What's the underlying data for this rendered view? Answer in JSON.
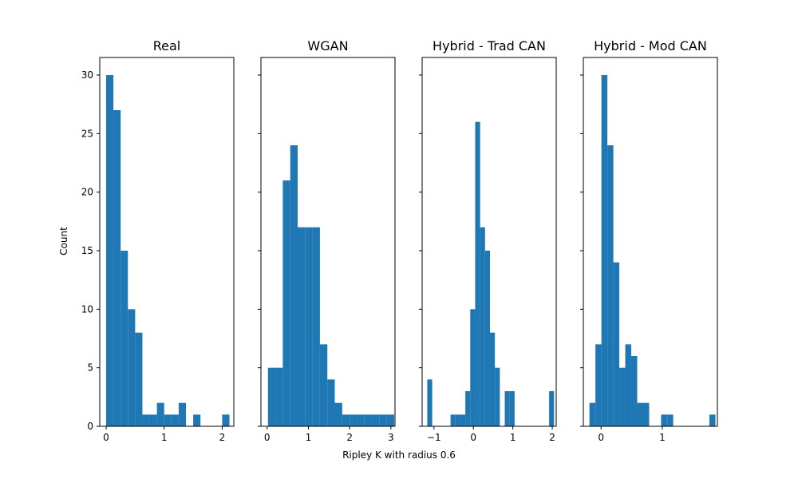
{
  "chart_data": {
    "type": "bar",
    "subtype": "histogram-panels",
    "xlabel": "Ripley K with radius 0.6",
    "ylabel": "Count",
    "shared_y": true,
    "ylim": [
      0,
      31.5
    ],
    "yticks": [
      0,
      5,
      10,
      15,
      20,
      25,
      30
    ],
    "bar_color": "#1f77b4",
    "panels": [
      {
        "title": "Real",
        "xlim": [
          -0.11,
          2.2
        ],
        "xticks": [
          0,
          1,
          2
        ],
        "bin_width": 0.125,
        "bins": [
          {
            "x": 0.0,
            "count": 30
          },
          {
            "x": 0.125,
            "count": 27
          },
          {
            "x": 0.25,
            "count": 15
          },
          {
            "x": 0.375,
            "count": 10
          },
          {
            "x": 0.5,
            "count": 8
          },
          {
            "x": 0.625,
            "count": 1
          },
          {
            "x": 0.75,
            "count": 1
          },
          {
            "x": 0.875,
            "count": 2
          },
          {
            "x": 1.0,
            "count": 1
          },
          {
            "x": 1.125,
            "count": 1
          },
          {
            "x": 1.25,
            "count": 2
          },
          {
            "x": 1.5,
            "count": 1
          },
          {
            "x": 2.0,
            "count": 1
          }
        ]
      },
      {
        "title": "WGAN",
        "xlim": [
          -0.15,
          3.1
        ],
        "xticks": [
          0,
          1,
          2,
          3
        ],
        "bin_width": 0.18,
        "bins": [
          {
            "x": 0.02,
            "count": 5
          },
          {
            "x": 0.2,
            "count": 5
          },
          {
            "x": 0.38,
            "count": 21
          },
          {
            "x": 0.56,
            "count": 24
          },
          {
            "x": 0.74,
            "count": 17
          },
          {
            "x": 0.92,
            "count": 17
          },
          {
            "x": 1.1,
            "count": 17
          },
          {
            "x": 1.28,
            "count": 7
          },
          {
            "x": 1.46,
            "count": 4
          },
          {
            "x": 1.64,
            "count": 2
          },
          {
            "x": 1.82,
            "count": 1
          },
          {
            "x": 2.0,
            "count": 1
          },
          {
            "x": 2.18,
            "count": 1
          },
          {
            "x": 2.36,
            "count": 1
          },
          {
            "x": 2.54,
            "count": 1
          },
          {
            "x": 2.72,
            "count": 1
          },
          {
            "x": 2.9,
            "count": 1
          }
        ]
      },
      {
        "title": "Hybrid - Trad CAN",
        "xlim": [
          -1.3,
          2.1
        ],
        "xticks": [
          -1,
          0,
          1,
          2
        ],
        "bin_width": 0.125,
        "bins": [
          {
            "x": -1.17,
            "count": 4
          },
          {
            "x": -0.58,
            "count": 1
          },
          {
            "x": -0.455,
            "count": 1
          },
          {
            "x": -0.33,
            "count": 1
          },
          {
            "x": -0.205,
            "count": 3
          },
          {
            "x": -0.08,
            "count": 10
          },
          {
            "x": 0.045,
            "count": 26
          },
          {
            "x": 0.17,
            "count": 17
          },
          {
            "x": 0.295,
            "count": 15
          },
          {
            "x": 0.42,
            "count": 8
          },
          {
            "x": 0.545,
            "count": 5
          },
          {
            "x": 0.795,
            "count": 3
          },
          {
            "x": 0.92,
            "count": 3
          },
          {
            "x": 1.92,
            "count": 3
          }
        ]
      },
      {
        "title": "Hybrid - Mod CAN",
        "xlim": [
          -0.29,
          1.9
        ],
        "xticks": [
          0,
          1
        ],
        "bin_width": 0.0975,
        "bins": [
          {
            "x": -0.19,
            "count": 2
          },
          {
            "x": -0.0925,
            "count": 7
          },
          {
            "x": 0.005,
            "count": 30
          },
          {
            "x": 0.1025,
            "count": 24
          },
          {
            "x": 0.2,
            "count": 14
          },
          {
            "x": 0.2975,
            "count": 5
          },
          {
            "x": 0.395,
            "count": 7
          },
          {
            "x": 0.4925,
            "count": 6
          },
          {
            "x": 0.59,
            "count": 2
          },
          {
            "x": 0.6875,
            "count": 2
          },
          {
            "x": 0.98,
            "count": 1
          },
          {
            "x": 1.08,
            "count": 1
          },
          {
            "x": 1.77,
            "count": 1
          }
        ]
      }
    ]
  }
}
